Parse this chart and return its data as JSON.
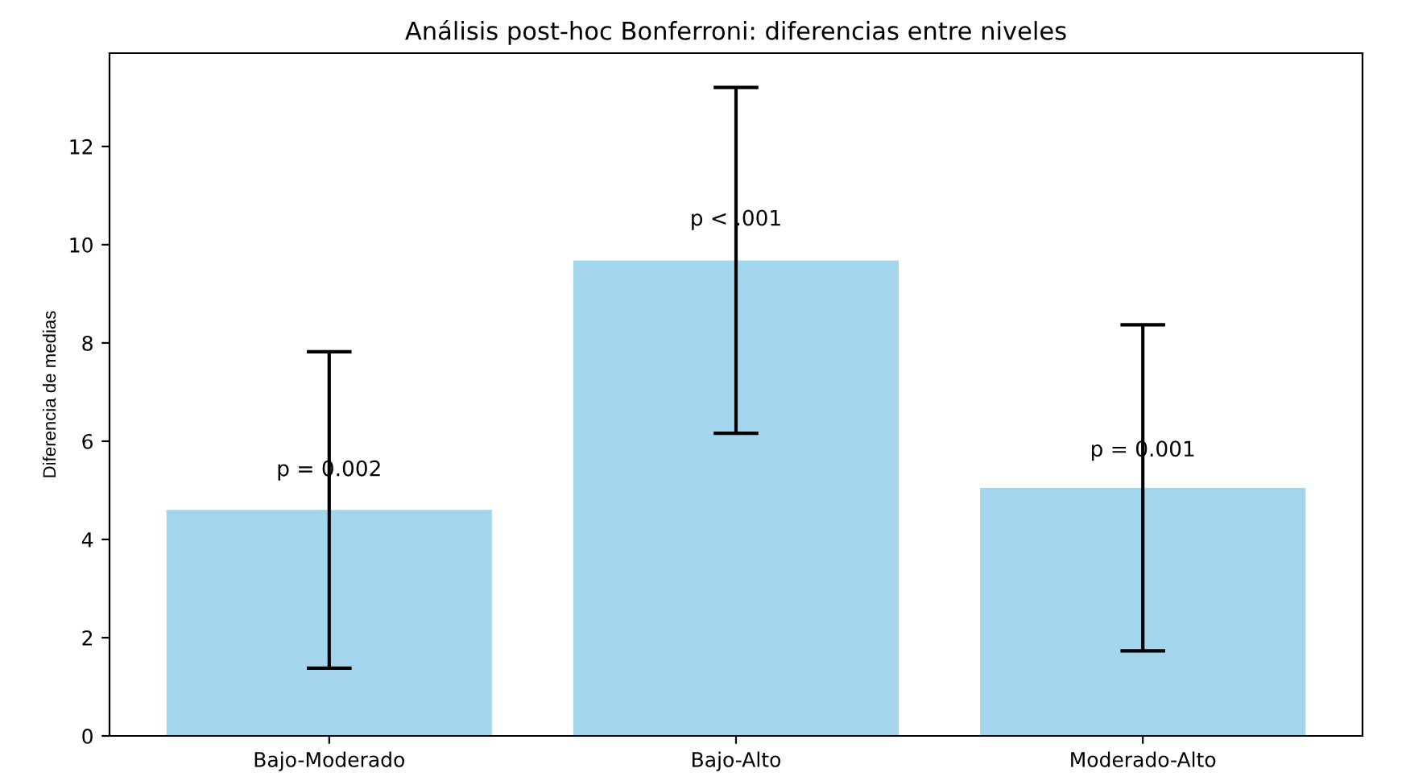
{
  "chart_data": {
    "type": "bar",
    "title": "Análisis post-hoc Bonferroni: diferencias entre niveles",
    "ylabel": "Diferencia de medias",
    "categories": [
      "Bajo-Moderado",
      "Bajo-Alto",
      "Moderado-Alto"
    ],
    "values": [
      4.6,
      9.68,
      5.05
    ],
    "errors": [
      3.22,
      3.52,
      3.32
    ],
    "color": "#a3d6ec",
    "ylim": [
      0,
      13.9
    ],
    "yticks": [
      0,
      2,
      4,
      6,
      8,
      10,
      12
    ],
    "grid": false,
    "annotations": [
      {
        "text": "p = 0.002",
        "x": "Bajo-Moderado",
        "y": 5.2
      },
      {
        "text": "p < .001",
        "x": "Bajo-Alto",
        "y": 10.3
      },
      {
        "text": "p = 0.001",
        "x": "Moderado-Alto",
        "y": 5.6
      }
    ]
  }
}
